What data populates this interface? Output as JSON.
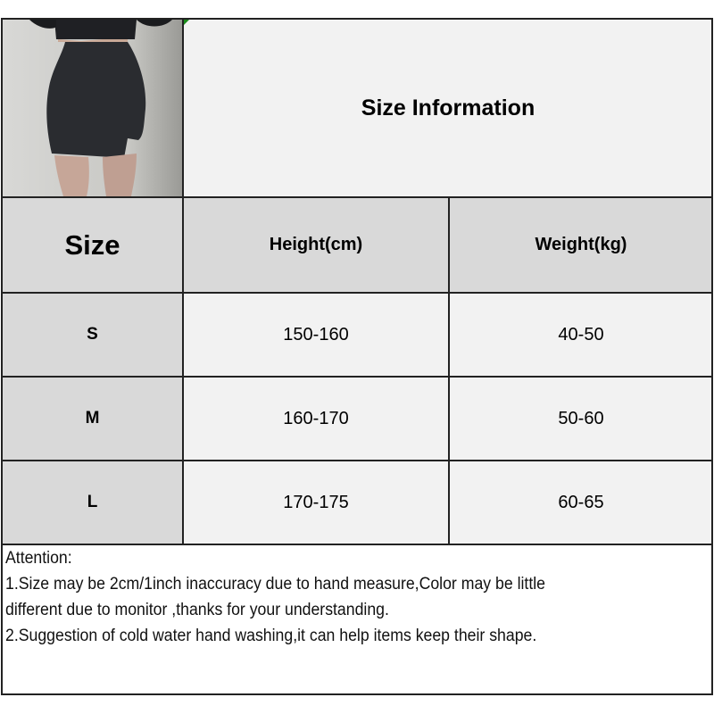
{
  "title": "Size Information",
  "product_image": "black mini skirt photo",
  "table": {
    "headers": [
      "Size",
      "Height(cm)",
      "Weight(kg)"
    ],
    "rows": [
      {
        "size": "S",
        "height": "150-160",
        "weight": "40-50"
      },
      {
        "size": "M",
        "height": "160-170",
        "weight": "50-60"
      },
      {
        "size": "L",
        "height": "170-175",
        "weight": "60-65"
      }
    ]
  },
  "notes": {
    "heading": "Attention:",
    "line1": "1.Size may be 2cm/1inch inaccuracy due to hand measure,Color may be little",
    "line2": "different due to monitor ,thanks for your understanding.",
    "line3": "2.Suggestion of cold water hand washing,it can help items keep their shape."
  },
  "colors": {
    "header_bg": "#d9d9d9",
    "cell_bg": "#f2f2f2",
    "border": "#222222"
  }
}
